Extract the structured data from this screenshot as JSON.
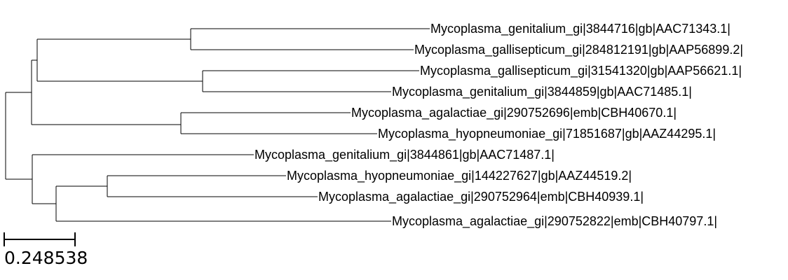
{
  "tree": {
    "leaves": [
      "Mycoplasma_genitalium_gi|3844716|gb|AAC71343.1|",
      "Mycoplasma_gallisepticum_gi|284812191|gb|AAP56899.2|",
      "Mycoplasma_gallisepticum_gi|31541320|gb|AAP56621.1|",
      "Mycoplasma_genitalium_gi|3844859|gb|AAC71485.1|",
      "Mycoplasma_agalactiae_gi|290752696|emb|CBH40670.1|",
      "Mycoplasma_hyopneumoniae_gi|71851687|gb|AAZ44295.1|",
      "Mycoplasma_genitalium_gi|3844861|gb|AAC71487.1|",
      "Mycoplasma_hyopneumoniae_gi|144227627|gb|AAZ44519.2|",
      "Mycoplasma_agalactiae_gi|290752964|emb|CBH40939.1|",
      "Mycoplasma_agalactiae_gi|290752822|emb|CBH40797.1|"
    ]
  },
  "scale": {
    "label": "0.248538"
  }
}
